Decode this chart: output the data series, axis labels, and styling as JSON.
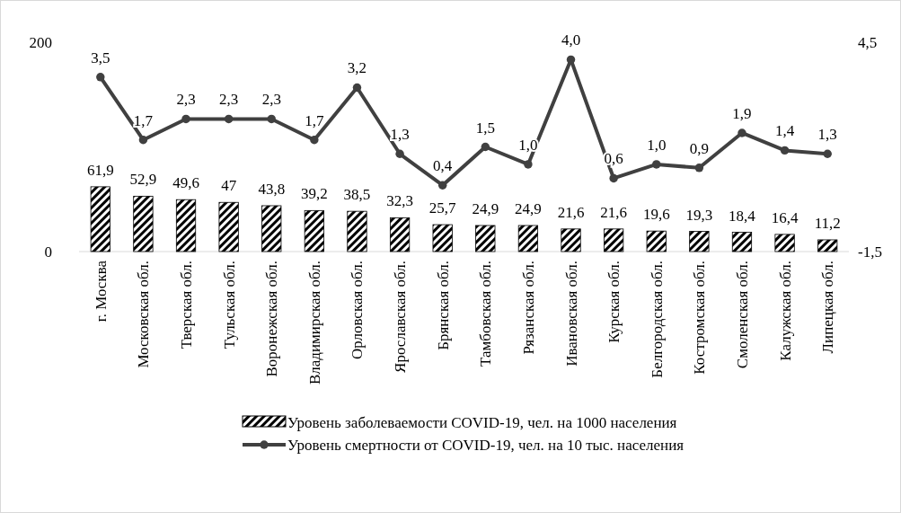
{
  "chart_data": {
    "type": "bar",
    "categories": [
      "г. Москва",
      "Московская обл.",
      "Тверская обл.",
      "Тульская обл.",
      "Воронежская обл.",
      "Владимирская обл.",
      "Орловская обл.",
      "Ярославская обл.",
      "Брянская обл.",
      "Тамбовская обл.",
      "Рязанская обл.",
      "Ивановская обл.",
      "Курская обл.",
      "Белгородская обл.",
      "Костромская обл.",
      "Смоленская обл.",
      "Калужская обл.",
      "Липецкая обл."
    ],
    "series": [
      {
        "name": "Уровень заболеваемости COVID-19, чел. на 1000 населения",
        "color": "#000000",
        "values": [
          61.9,
          52.9,
          49.6,
          47,
          43.8,
          39.2,
          38.5,
          32.3,
          25.7,
          24.9,
          24.9,
          21.6,
          21.6,
          19.6,
          19.3,
          18.4,
          16.4,
          11.2
        ],
        "value_labels": [
          "61,9",
          "52,9",
          "49,6",
          "47",
          "43,8",
          "39,2",
          "38,5",
          "32,3",
          "25,7",
          "24,9",
          "24,9",
          "21,6",
          "21,6",
          "19,6",
          "19,3",
          "18,4",
          "16,4",
          "11,2"
        ]
      },
      {
        "name": "Уровень смертности от COVID-19, чел. на 10 тыс. населения",
        "type": "line",
        "axis": "y2",
        "color": "#404040",
        "marker": "circle",
        "values": [
          3.5,
          1.7,
          2.3,
          2.3,
          2.3,
          1.7,
          3.2,
          1.3,
          0.4,
          1.5,
          1.0,
          4.0,
          0.6,
          1.0,
          0.9,
          1.9,
          1.4,
          1.3
        ],
        "value_labels": [
          "3,5",
          "1,7",
          "2,3",
          "2,3",
          "2,3",
          "1,7",
          "3,2",
          "1,3",
          "0,4",
          "1,5",
          "1,0",
          "4,0",
          "0,6",
          "1,0",
          "0,9",
          "1,9",
          "1,4",
          "1,3"
        ]
      }
    ],
    "ylim": [
      0,
      200
    ],
    "yticks": [
      0,
      200
    ],
    "y2lim": [
      -1.5,
      4.5
    ],
    "y2ticks": [
      {
        "value": -1.5,
        "label": "-1,5"
      },
      {
        "value": 4.5,
        "label": "4,5"
      }
    ],
    "legend": "bottom",
    "grid": false
  }
}
